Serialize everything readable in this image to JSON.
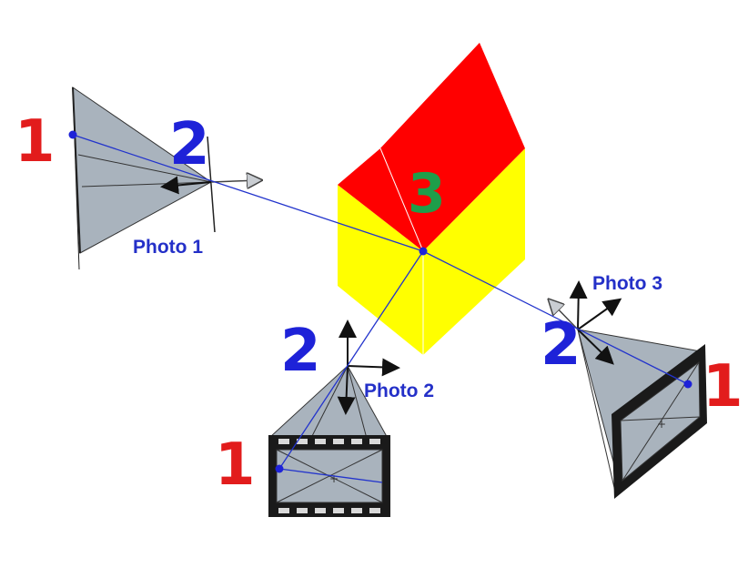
{
  "labels": {
    "photo1": "Photo 1",
    "photo2": "Photo 2",
    "photo3": "Photo 3",
    "image_point": "1",
    "camera_center": "2",
    "object_point": "3"
  },
  "colors": {
    "red_label": "#e21c1c",
    "blue_label": "#1e22d8",
    "green_label": "#1e9e4a",
    "photo_label": "#2430c8",
    "roof": "#ff0000",
    "walls": "#ffff00",
    "pyramid": "#a9b3bd",
    "ray": "#2233cc"
  }
}
